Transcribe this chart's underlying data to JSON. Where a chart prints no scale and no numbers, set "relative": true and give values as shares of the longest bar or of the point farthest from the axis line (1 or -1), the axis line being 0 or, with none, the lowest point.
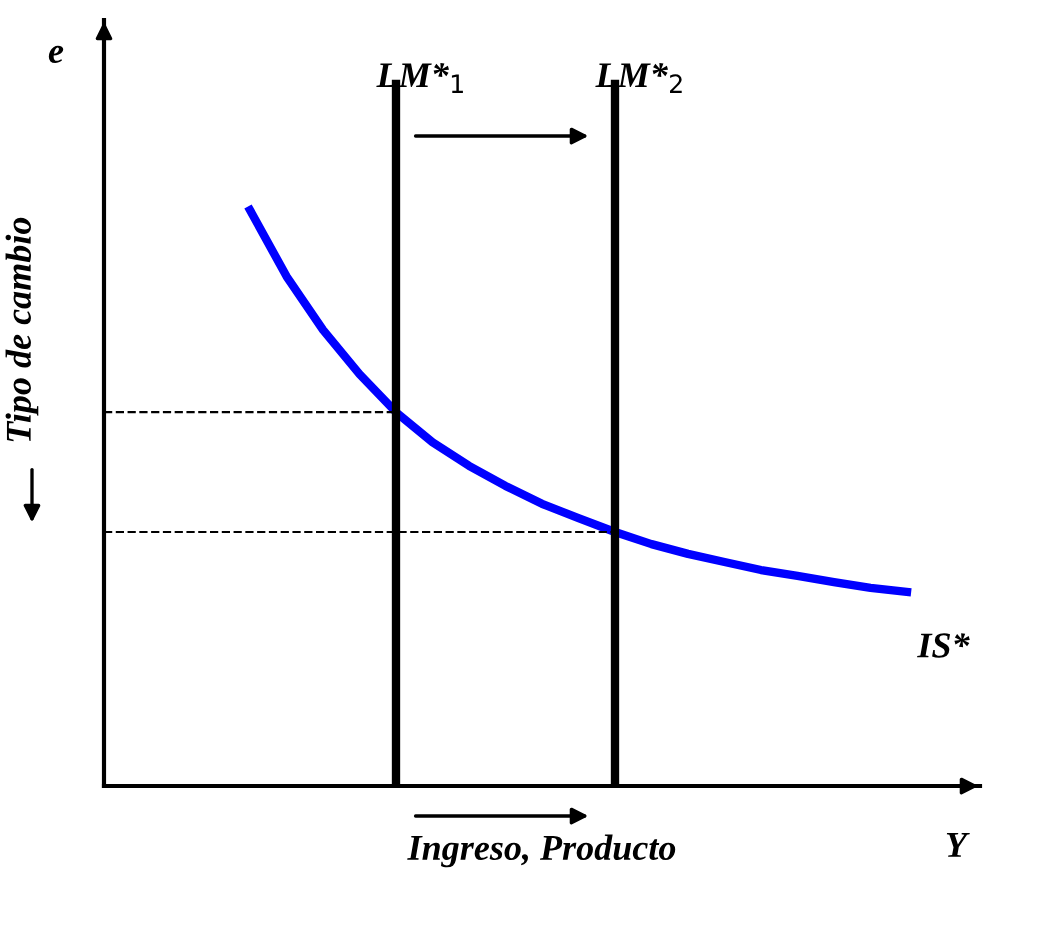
{
  "chart_data": {
    "type": "line",
    "relative": true,
    "xlabel": "Ingreso, Producto",
    "ylabel": "Tipo de cambio",
    "annotations": [
      "e",
      "Y",
      "LM*$_{1}$",
      "LM*$_{2}$"
    ],
    "categories": [
      null,
      null,
      null,
      null,
      null,
      null,
      null,
      null,
      null,
      null,
      null,
      null,
      null,
      null,
      null,
      null,
      null,
      null,
      null,
      null,
      null,
      null,
      null,
      null,
      null
    ],
    "series": [
      {
        "name": "IS*",
        "color": "#0000ff",
        "values": [
          null,
          null,
          null,
          null,
          1,
          0.885,
          0.792,
          0.715,
          0.649,
          0.597,
          0.556,
          0.521,
          0.49,
          0.465,
          0.441,
          0.42,
          0.403,
          0.389,
          0.375,
          0.365,
          0.354,
          0.344,
          0.337,
          null,
          null
        ]
      }
    ],
    "ref_lines": [
      {
        "axis": "y",
        "value": 0.649,
        "label": null,
        "color": "#000000",
        "line_style": "dashed"
      },
      {
        "axis": "y",
        "value": 0.441,
        "label": null,
        "color": "#000000",
        "line_style": "dashed"
      }
    ],
    "marker": "none",
    "line_style": "solid",
    "grid": false
  }
}
